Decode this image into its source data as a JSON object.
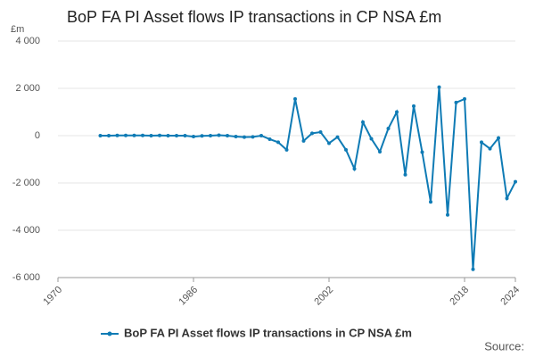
{
  "chart_data": {
    "type": "line",
    "title": "BoP FA PI Asset flows IP transactions in CP NSA £m",
    "y_label": "£m",
    "source": "Source:",
    "x": [
      1975,
      1976,
      1977,
      1978,
      1979,
      1980,
      1981,
      1982,
      1983,
      1984,
      1985,
      1986,
      1987,
      1988,
      1989,
      1990,
      1991,
      1992,
      1993,
      1994,
      1995,
      1996,
      1997,
      1998,
      1999,
      2000,
      2001,
      2002,
      2003,
      2004,
      2005,
      2006,
      2007,
      2008,
      2009,
      2010,
      2011,
      2012,
      2013,
      2014,
      2015,
      2016,
      2017,
      2018,
      2019,
      2020,
      2021,
      2022,
      2023,
      2024
    ],
    "series": [
      {
        "name": "BoP FA PI Asset flows IP transactions in CP NSA £m",
        "color": "#0f7bb5",
        "values": [
          0,
          0,
          10,
          10,
          10,
          10,
          0,
          10,
          0,
          0,
          0,
          -40,
          -10,
          0,
          20,
          0,
          -40,
          -60,
          -50,
          0,
          -150,
          -280,
          -600,
          1550,
          -220,
          100,
          150,
          -320,
          -60,
          -600,
          -1400,
          570,
          -130,
          -680,
          300,
          1000,
          -1650,
          1250,
          -700,
          -2800,
          2050,
          -3350,
          1400,
          1550,
          -5650,
          -280,
          -550,
          -100,
          -2650,
          -1950
        ]
      }
    ],
    "xlim": [
      1970,
      2024
    ],
    "xticks": [
      1970,
      1986,
      2002,
      2018,
      2024
    ],
    "ylim": [
      -6000,
      4000
    ],
    "yticks": [
      {
        "value": -6000,
        "label": "-6 000"
      },
      {
        "value": -4000,
        "label": "-4 000"
      },
      {
        "value": -2000,
        "label": "-2 000"
      },
      0,
      {
        "value": 2000,
        "label": "2 000"
      },
      {
        "value": 4000,
        "label": "4 000"
      }
    ],
    "grid": true
  }
}
